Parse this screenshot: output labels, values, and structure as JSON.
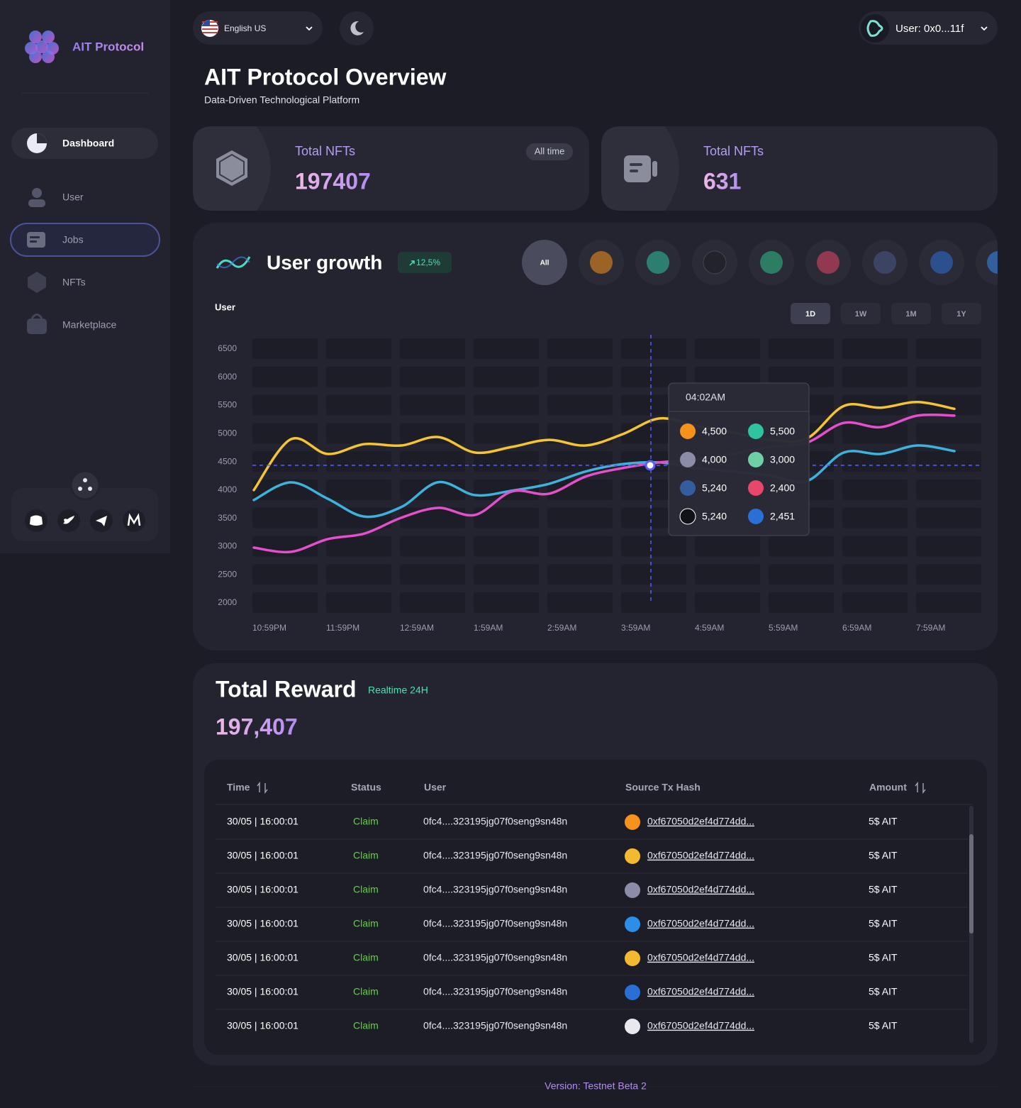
{
  "sidebar": {
    "brand": "AIT Protocol",
    "nav": [
      "Dashboard",
      "User",
      "Jobs",
      "NFTs",
      "Marketplace"
    ]
  },
  "header": {
    "language": "English US",
    "user": "User: 0x0...11f",
    "title": "AIT Protocol Overview",
    "subtitle": "Data-Driven Technological Platform"
  },
  "stats": [
    {
      "label": "Total NFTs",
      "badge": "All time",
      "value": "197407"
    },
    {
      "label": "Total NFTs",
      "value": "631"
    }
  ],
  "user_growth": {
    "change": "12,5%",
    "coin_filter": "All",
    "periods": [
      "1D",
      "1W",
      "1M",
      "1Y"
    ],
    "tooltip": {
      "time": "04:02AM",
      "items": [
        "4,500",
        "5,500",
        "4,000",
        "3,000",
        "5,240",
        "2,400",
        "5,240",
        "2,451"
      ]
    }
  },
  "chart_data": {
    "type": "line",
    "title": "User growth",
    "ylabel": "User",
    "categories": [
      "10:59PM",
      null,
      "11:59PM",
      null,
      "12:59AM",
      null,
      "1:59AM",
      null,
      "2:59AM",
      null,
      "3:59AM",
      null,
      "4:59AM",
      null,
      "5:59AM",
      null,
      "6:59AM",
      null,
      "7:59AM",
      null
    ],
    "series": [
      {
        "color": "#f5c432",
        "values": [
          4000,
          4900,
          4640,
          4815,
          4790,
          4940,
          4665,
          4765,
          4890,
          4790,
          4990,
          5270,
          5140,
          5020,
          4890,
          4915,
          5490,
          5460,
          5560,
          5440
        ]
      },
      {
        "color": "#3db3dc",
        "values": [
          3823,
          4137,
          3848,
          3530,
          3700,
          4140,
          3910,
          3990,
          4110,
          4330,
          4460,
          4490,
          4390,
          4330,
          4260,
          4160,
          4665,
          4640,
          4790,
          4690
        ]
      },
      {
        "color": "#e64fcb",
        "values": [
          2980,
          2905,
          3130,
          3230,
          3510,
          3685,
          3560,
          3975,
          3935,
          4240,
          4390,
          4490,
          4540,
          4640,
          4765,
          4840,
          5190,
          5115,
          5320,
          5320
        ]
      }
    ],
    "ylim": [
      2000,
      6500
    ],
    "yticks": [
      2000,
      2500,
      3000,
      3500,
      4000,
      4500,
      5000,
      5500,
      6000,
      6500
    ],
    "grid": true
  },
  "reward": {
    "title": "Total Reward",
    "badge": "Realtime 24H",
    "value": "197,407",
    "columns": [
      "Time",
      "Status",
      "User",
      "Source Tx Hash",
      "Amount"
    ],
    "rows": [
      [
        "30/05 | 16:00:01",
        "Claim",
        "0fc4....323195jg07f0seng9sn48n",
        "0xf67050d2ef4d774dd...",
        "5$ AIT"
      ],
      [
        "30/05 | 16:00:01",
        "Claim",
        "0fc4....323195jg07f0seng9sn48n",
        "0xf67050d2ef4d774dd...",
        "5$ AIT"
      ],
      [
        "30/05 | 16:00:01",
        "Claim",
        "0fc4....323195jg07f0seng9sn48n",
        "0xf67050d2ef4d774dd...",
        "5$ AIT"
      ],
      [
        "30/05 | 16:00:01",
        "Claim",
        "0fc4....323195jg07f0seng9sn48n",
        "0xf67050d2ef4d774dd...",
        "5$ AIT"
      ],
      [
        "30/05 | 16:00:01",
        "Claim",
        "0fc4....323195jg07f0seng9sn48n",
        "0xf67050d2ef4d774dd...",
        "5$ AIT"
      ],
      [
        "30/05 | 16:00:01",
        "Claim",
        "0fc4....323195jg07f0seng9sn48n",
        "0xf67050d2ef4d774dd...",
        "5$ AIT"
      ],
      [
        "30/05 | 16:00:01",
        "Claim",
        "0fc4....323195jg07f0seng9sn48n",
        "0xf67050d2ef4d774dd...",
        "5$ AIT"
      ]
    ]
  },
  "footer": "Version: Testnet Beta 2"
}
